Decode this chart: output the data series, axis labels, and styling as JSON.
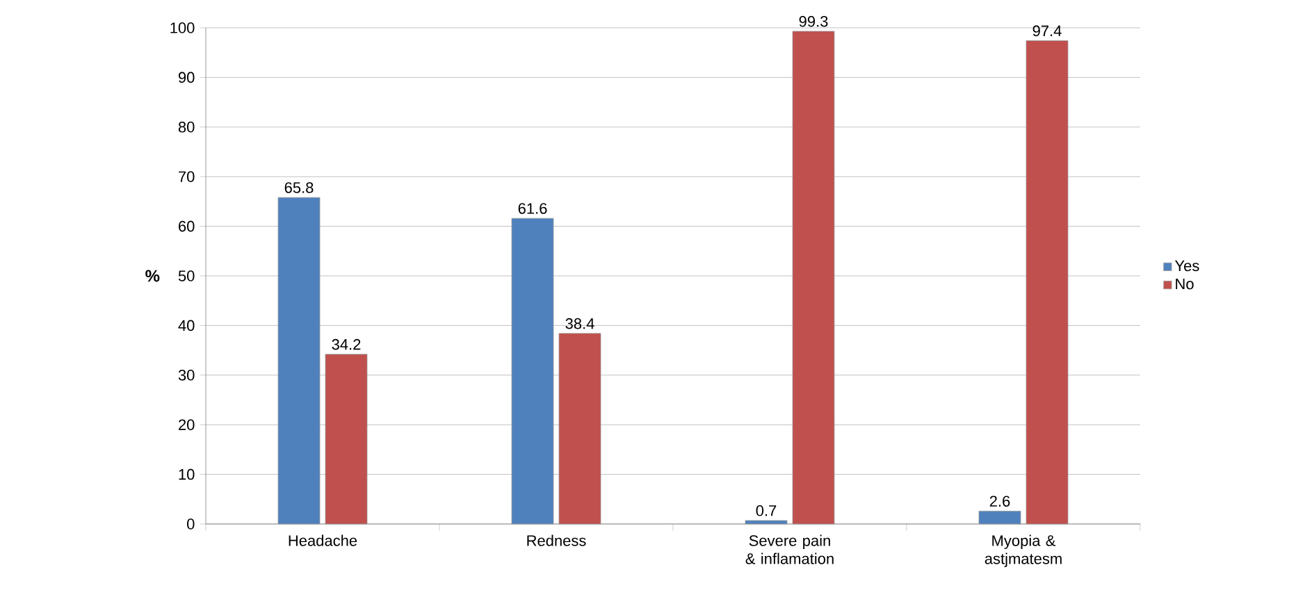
{
  "chart_data": {
    "type": "bar",
    "ylabel": "%",
    "categories": [
      "Headache",
      "Redness",
      "Severe pain & inflamation",
      "Myopia & astjmatesm"
    ],
    "series": [
      {
        "name": "Yes",
        "color": "#4f81bd",
        "values": [
          65.8,
          61.6,
          0.7,
          2.6
        ]
      },
      {
        "name": "No",
        "color": "#c0504d",
        "values": [
          34.2,
          38.4,
          99.3,
          97.4
        ]
      }
    ],
    "ylim": [
      0,
      100
    ],
    "yticks": [
      0,
      10,
      20,
      30,
      40,
      50,
      60,
      70,
      80,
      90,
      100
    ],
    "grid": "y",
    "legend": "right",
    "data_labels": true
  }
}
